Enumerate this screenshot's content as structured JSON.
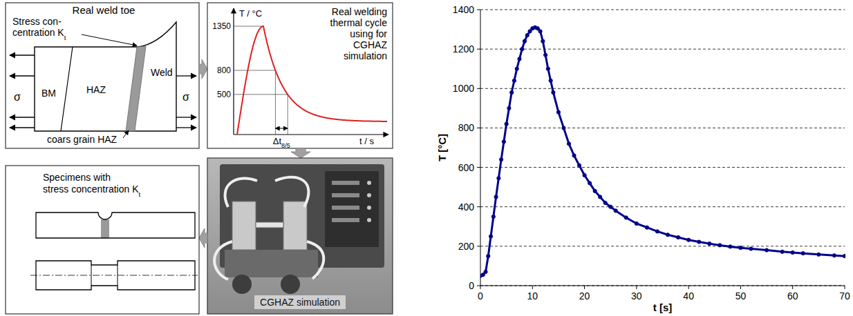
{
  "diagram": {
    "weld_toe": {
      "title": "Real weld toe",
      "stress_label": [
        "Stress con-",
        "centration K"
      ],
      "stress_subscript": "t",
      "weld": "Weld",
      "haz": "HAZ",
      "bm": "BM",
      "sigma": "σ",
      "cghaz": "coars grain HAZ"
    },
    "thermal_cycle": {
      "title": [
        "Real welding",
        "thermal cycle",
        "using for",
        "CGHAZ",
        "simulation"
      ],
      "y_label": "T / °C",
      "yticks": [
        1350,
        800,
        500
      ],
      "dt_label": "Δt",
      "dt_subscript": "8/5",
      "x_label": "t / s"
    },
    "simulation": {
      "label": "CGHAZ simulation"
    },
    "specimens": {
      "title": [
        "Specimens with",
        "stress concentration K"
      ],
      "title_subscript": "t"
    }
  },
  "chart_data": {
    "type": "line",
    "x_label": "t [s]",
    "y_label": "T [°C]",
    "x": [
      0,
      0.5,
      1,
      1.5,
      2,
      2.5,
      3,
      3.5,
      4,
      4.5,
      5,
      5.5,
      6,
      6.5,
      7,
      7.5,
      8,
      8.5,
      9,
      9.5,
      10,
      10.5,
      11,
      11.5,
      12,
      12.5,
      13,
      13.5,
      14,
      15,
      16,
      17,
      18,
      19,
      20,
      21,
      22,
      23,
      24,
      25,
      26,
      28,
      30,
      32,
      34,
      36,
      38,
      40,
      42,
      44,
      46,
      48,
      50,
      52,
      55,
      58,
      60,
      62,
      65,
      68,
      70
    ],
    "values": [
      50,
      55,
      70,
      150,
      250,
      350,
      450,
      545,
      640,
      730,
      820,
      900,
      980,
      1040,
      1100,
      1150,
      1200,
      1240,
      1270,
      1290,
      1305,
      1310,
      1305,
      1290,
      1240,
      1170,
      1100,
      1040,
      980,
      880,
      800,
      720,
      660,
      610,
      560,
      520,
      480,
      450,
      420,
      400,
      380,
      345,
      315,
      295,
      275,
      258,
      245,
      232,
      222,
      213,
      205,
      198,
      192,
      187,
      180,
      172,
      168,
      164,
      158,
      153,
      150
    ],
    "color": "#00008b",
    "marker": "circle",
    "xlim": [
      0,
      70
    ],
    "ylim": [
      0,
      1400
    ],
    "xticks": [
      0,
      10,
      20,
      30,
      40,
      50,
      60,
      70
    ],
    "yticks": [
      0,
      200,
      400,
      600,
      800,
      1000,
      1200,
      1400
    ],
    "grid": true
  }
}
